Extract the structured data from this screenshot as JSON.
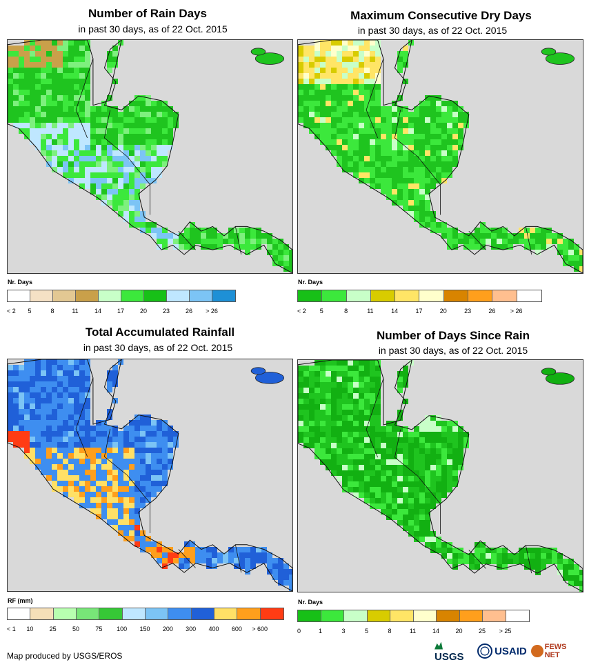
{
  "panels": [
    {
      "title": "Number of Rain Days",
      "subtitle": "in past 30 days, as of 22 Oct. 2015",
      "legend_title": "Nr. Days",
      "legend_labels": [
        "< 2",
        "5",
        "8",
        "11",
        "14",
        "17",
        "20",
        "23",
        "26",
        "> 26"
      ],
      "legend_colors": [
        "#ffffff",
        "#f5e1c5",
        "#e3c893",
        "#c9a04a",
        "#c8ffc8",
        "#3ce83c",
        "#17c017",
        "#bfe7ff",
        "#7cc4f5",
        "#1e90d6"
      ],
      "map_palette": [
        "#1fc41f",
        "#3ce83c",
        "#7ef07e",
        "#bfe7ff",
        "#7cc4f5",
        "#c9a04a",
        "#d9d9d9"
      ]
    },
    {
      "title": "Maximum Consecutive Dry Days",
      "subtitle": "in past 30 days, as of 22 Oct. 2015",
      "legend_title": "Nr. Days",
      "legend_labels": [
        "< 2",
        "5",
        "8",
        "11",
        "14",
        "17",
        "20",
        "23",
        "26",
        "> 26"
      ],
      "legend_colors": [
        "#17c017",
        "#3ce83c",
        "#c8ffc8",
        "#d8cc00",
        "#ffe566",
        "#ffffcc",
        "#d88400",
        "#ff9f1c",
        "#ffbf8f",
        "#ffffff"
      ],
      "map_palette": [
        "#1fc41f",
        "#3ce83c",
        "#c8ffc8",
        "#ffe566",
        "#d8cc00",
        "#ffffcc"
      ]
    },
    {
      "title": "Total Accumulated Rainfall",
      "subtitle": "in past 30 days, as of 22 Oct. 2015",
      "legend_title": "RF (mm)",
      "legend_labels": [
        "< 1",
        "10",
        "25",
        "50",
        "75",
        "100",
        "150",
        "200",
        "300",
        "400",
        "600",
        "> 600"
      ],
      "legend_colors": [
        "#ffffff",
        "#f5dfb8",
        "#b8ffb0",
        "#78e678",
        "#36c836",
        "#bfe7ff",
        "#7cc4f5",
        "#3e8ef0",
        "#2060d8",
        "#ffe066",
        "#ff9f1c",
        "#ff3c14"
      ],
      "map_palette": [
        "#2060d8",
        "#3e8ef0",
        "#7cc4f5",
        "#ffe066",
        "#ff9f1c",
        "#ff3c14"
      ]
    },
    {
      "title": "Number of Days Since Rain",
      "subtitle": "in past 30 days, as of 22 Oct. 2015",
      "legend_title": "Nr. Days",
      "legend_labels": [
        "0",
        "1",
        "3",
        "5",
        "8",
        "11",
        "14",
        "20",
        "25",
        "> 25"
      ],
      "legend_colors": [
        "#17c017",
        "#3ce83c",
        "#c8ffc8",
        "#d8cc00",
        "#ffe566",
        "#ffffcc",
        "#d88400",
        "#ff9f1c",
        "#ffbf8f",
        "#ffffff"
      ],
      "map_palette": [
        "#12b012",
        "#3ce83c",
        "#c8ffc8",
        "#1fc41f"
      ]
    }
  ],
  "footer": "Map produced by USGS/EROS",
  "logos": {
    "usgs": "USGS",
    "usaid": "USAID",
    "fews": "FEWS NET"
  }
}
